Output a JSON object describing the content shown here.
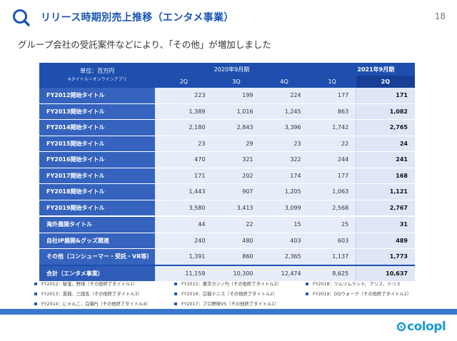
{
  "header": {
    "title": "リリース時期別売上推移（エンタメ事業）",
    "page_number": "18",
    "subtitle": "グループ会社の受託案件などにより、「その他」が増加しました"
  },
  "table": {
    "unit_label": "単位：百万円",
    "unit_note": "※タイトル＝オンラインアプリ",
    "period_2020": "2020年9月期",
    "period_2021": "2021年9月期",
    "quarters": [
      "2Q",
      "3Q",
      "4Q",
      "1Q",
      "2Q"
    ],
    "rows": [
      {
        "label": "FY2012開始タイトル",
        "values": [
          "223",
          "199",
          "224",
          "177",
          "171"
        ]
      },
      {
        "label": "FY2013開始タイトル",
        "values": [
          "1,389",
          "1,016",
          "1,245",
          "863",
          "1,082"
        ]
      },
      {
        "label": "FY2014開始タイトル",
        "values": [
          "2,180",
          "2,843",
          "3,396",
          "1,742",
          "2,765"
        ]
      },
      {
        "label": "FY2015開始タイトル",
        "values": [
          "23",
          "29",
          "23",
          "22",
          "24"
        ]
      },
      {
        "label": "FY2016開始タイトル",
        "values": [
          "470",
          "321",
          "322",
          "244",
          "241"
        ]
      },
      {
        "label": "FY2017開始タイトル",
        "values": [
          "171",
          "202",
          "174",
          "177",
          "168"
        ]
      },
      {
        "label": "FY2018開始タイトル",
        "values": [
          "1,443",
          "907",
          "1,205",
          "1,063",
          "1,121"
        ]
      },
      {
        "label": "FY2019開始タイトル",
        "values": [
          "3,580",
          "3,413",
          "3,099",
          "2,568",
          "2,767"
        ]
      },
      {
        "label": "海外展開タイトル",
        "values": [
          "44",
          "22",
          "15",
          "25",
          "31"
        ]
      },
      {
        "label": "自社IP展開&グッズ関連",
        "values": [
          "240",
          "480",
          "403",
          "603",
          "489"
        ]
      },
      {
        "label": "その他（コンシューマー・受託・VR等）",
        "values": [
          "1,391",
          "860",
          "2,365",
          "1,137",
          "1,773"
        ]
      },
      {
        "label": "合計（エンタメ事業）",
        "values": [
          "11,159",
          "10,300",
          "12,474",
          "8,625",
          "10,637"
        ]
      }
    ]
  },
  "notes": [
    "FY2012：秘宝、野球（その他終了タイトル1）",
    "FY2013：黒猫、三国志（その他終了タイトル3）",
    "FY2014：にゃんこ、白猫PJ（その他終了タイトル4）",
    "FY2015：東京カジノPJ（その他終了タイトル2）",
    "FY2016：白猫テニス（その他終了タイトル2）",
    "FY2017：プロ野球VS（その他終了タイトル1）",
    "FY2018：ツムツムランド、アリス、ドリミ",
    "FY2019：DQウォーク（その他終了タイトル2）"
  ],
  "logo": {
    "text": "colopl"
  },
  "colors": {
    "brand_blue": "#1e4fae",
    "row_label": "#3563bd",
    "cell_bg": "#e6ecf8",
    "bottom_bar": "#3a78d0",
    "logo": "#1a9ad6"
  }
}
